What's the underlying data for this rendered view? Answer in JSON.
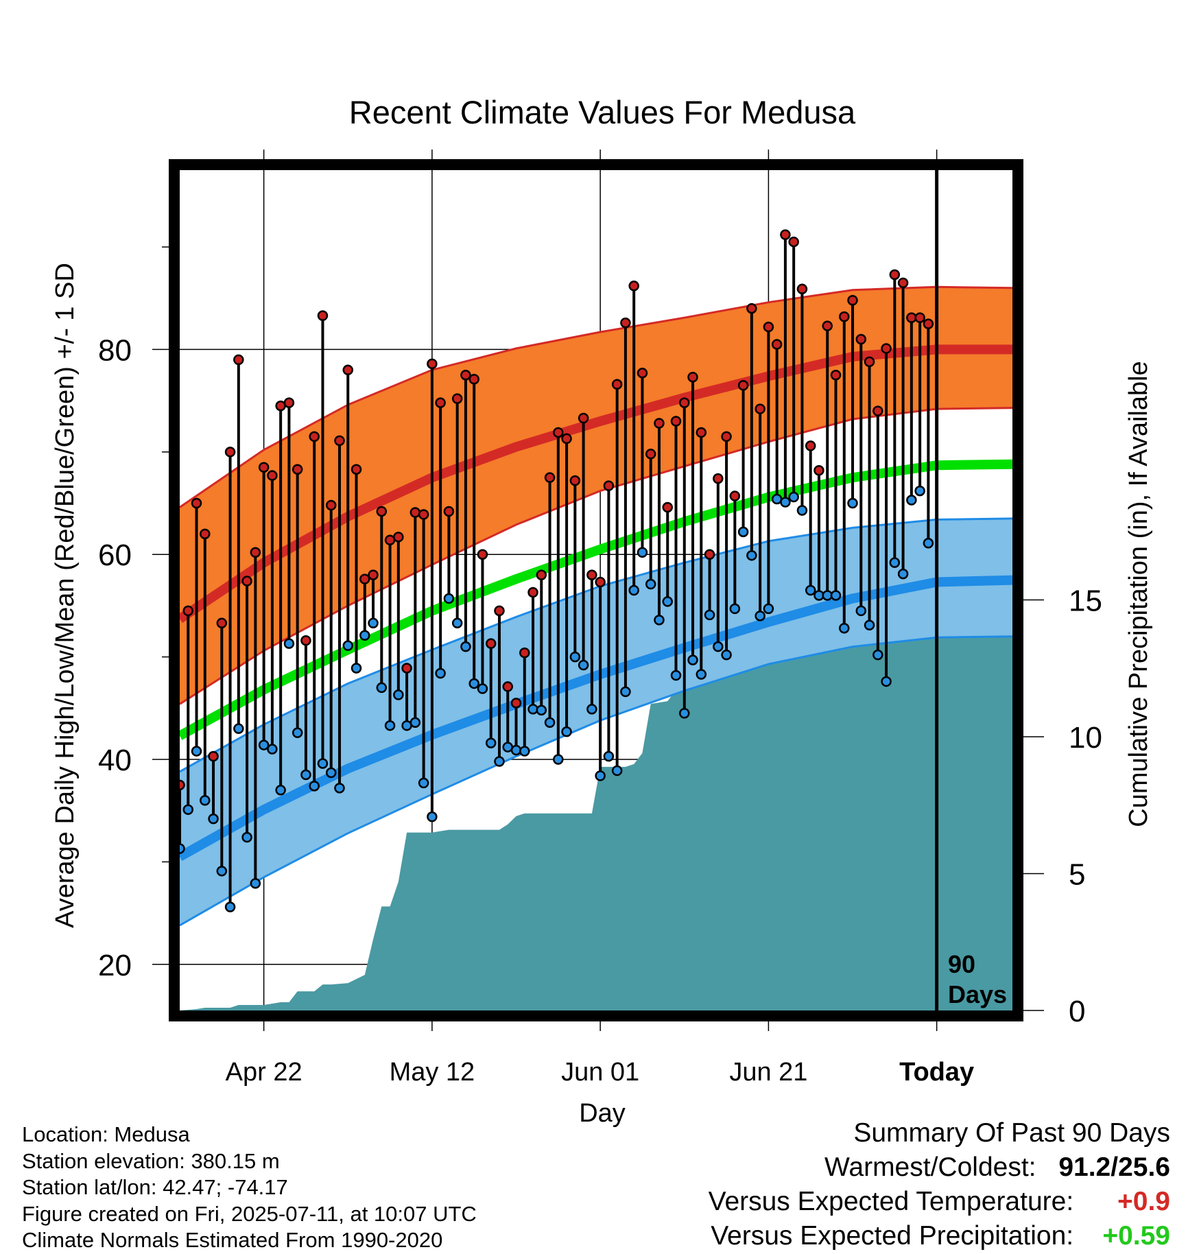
{
  "chart_data": {
    "type": "line",
    "title": "Recent Climate Values For Medusa",
    "xlabel": "Day",
    "ylabel": "Average Daily High/Low/Mean (Red/Blue/Green) +/- 1 SD",
    "y2label": "Cumulative Precipitation (in), If Available",
    "ylim": [
      15.5,
      97.5
    ],
    "y2lim": [
      0,
      30.7
    ],
    "y_ticks": [
      "20",
      "40",
      "60",
      "80"
    ],
    "y2_ticks": [
      "0",
      "5",
      "10",
      "15"
    ],
    "x_tick_labels": [
      "Apr 22",
      "May 12",
      "Jun 01",
      "Jun 21",
      "Today"
    ],
    "x_tick_days": [
      10,
      30,
      50,
      70,
      90
    ],
    "x_range": [
      0,
      99
    ],
    "today_marker": {
      "day": 90,
      "label_line1": "90",
      "label_line2": "Days"
    },
    "series": [
      {
        "name": "Daily High",
        "color": "#c8211f",
        "values": [
          37.5,
          54.5,
          65,
          62,
          40.3,
          53.3,
          70,
          79,
          57.4,
          60.2,
          68.5,
          67.7,
          74.5,
          74.8,
          68.3,
          51.6,
          71.5,
          83.3,
          64.8,
          71.1,
          78,
          68.3,
          57.6,
          58,
          64.2,
          61.4,
          61.7,
          48.9,
          64.1,
          63.9,
          78.6,
          74.8,
          64.2,
          75.2,
          77.5,
          77.1,
          60,
          51.3,
          54.5,
          47.1,
          45.5,
          50.4,
          56.3,
          58,
          67.5,
          71.9,
          71.3,
          67.2,
          73.3,
          58,
          57.3,
          66.7,
          76.6,
          82.6,
          86.2,
          77.7,
          69.8,
          72.8,
          64.6,
          73,
          74.8,
          77.3,
          71.9,
          60,
          67.4,
          71.5,
          65.7,
          76.5,
          84,
          74.2,
          82.2,
          80.5,
          91.2,
          90.5,
          85.9,
          70.6,
          68.2,
          82.3,
          77.5,
          83.2,
          84.8,
          81,
          78.8,
          74,
          80.1,
          87.3,
          86.5,
          83.1,
          83.1,
          82.5
        ]
      },
      {
        "name": "Daily Low",
        "color": "#2a8fe0",
        "values": [
          31.3,
          35.1,
          40.8,
          36,
          34.2,
          29.1,
          25.6,
          43,
          32.4,
          27.9,
          41.4,
          41,
          37,
          51.3,
          42.6,
          38.5,
          37.4,
          39.6,
          38.7,
          37.2,
          51.1,
          48.9,
          52.1,
          53.3,
          47,
          43.3,
          46.3,
          43.3,
          43.6,
          37.7,
          34.4,
          48.4,
          55.7,
          53.3,
          51,
          47.4,
          46.9,
          41.6,
          39.8,
          41.2,
          40.9,
          40.8,
          44.9,
          44.8,
          43.6,
          40,
          42.7,
          50,
          49.2,
          44.9,
          38.4,
          40.3,
          38.9,
          46.6,
          56.5,
          60.2,
          57.1,
          53.6,
          55.4,
          48.2,
          44.5,
          49.7,
          48.3,
          54.1,
          51,
          50.2,
          54.7,
          62.2,
          59.9,
          54,
          54.7,
          65.4,
          65.1,
          65.6,
          64.3,
          56.5,
          56,
          56,
          56,
          52.8,
          65,
          54.5,
          53.1,
          50.2,
          47.6,
          59.2,
          58.1,
          65.3,
          66.2,
          61.1
        ]
      },
      {
        "name": "Mean",
        "color": "#00e000"
      },
      {
        "name": "Precipitation",
        "color": "#4a9aa3"
      }
    ],
    "normal_high": {
      "color": "#d42a26",
      "band_color": "#f47c2a",
      "x": [
        0,
        10,
        20,
        30,
        40,
        50,
        60,
        70,
        80,
        90,
        99
      ],
      "mean": [
        53.7,
        59.2,
        63.7,
        67.5,
        70.5,
        73,
        75.3,
        77.4,
        79.3,
        80,
        80
      ],
      "upper": [
        64.6,
        70.2,
        74.6,
        78,
        80.1,
        81.7,
        83.1,
        84.6,
        85.8,
        86.1,
        86
      ],
      "lower": [
        45.4,
        50.6,
        55,
        59,
        62.9,
        66.2,
        68.6,
        71,
        73.2,
        74.2,
        74.3
      ]
    },
    "normal_low": {
      "color": "#1f8ce6",
      "band_color": "#7fbfe8",
      "x": [
        0,
        10,
        20,
        30,
        40,
        50,
        60,
        70,
        80,
        90,
        99
      ],
      "mean": [
        30.5,
        35.1,
        39.1,
        42.4,
        45.4,
        48.3,
        50.9,
        53.4,
        55.7,
        57.3,
        57.5
      ],
      "upper": [
        38.8,
        43.4,
        47.4,
        50.7,
        53.9,
        56.9,
        59.2,
        61.3,
        62.6,
        63.4,
        63.5
      ],
      "lower": [
        23.8,
        28.5,
        32.8,
        36.6,
        40.3,
        43.8,
        46.7,
        49.3,
        51,
        51.9,
        52
      ]
    },
    "normal_mean": {
      "x": [
        0,
        10,
        20,
        30,
        40,
        50,
        60,
        70,
        80,
        90,
        99
      ],
      "values": [
        42.3,
        46.8,
        50.7,
        54.5,
        57.6,
        60.5,
        63.2,
        65.6,
        67.5,
        68.7,
        68.8
      ]
    },
    "cumulative_precip": {
      "x": [
        0,
        2,
        3,
        6,
        7,
        10,
        12,
        13,
        14,
        16,
        17,
        18,
        20,
        22,
        23,
        24,
        25,
        26,
        27,
        28,
        29,
        30,
        32,
        35,
        38,
        39,
        40,
        41,
        44,
        45,
        47,
        48,
        49,
        50,
        52,
        53,
        54,
        55,
        56,
        58,
        60,
        61,
        62,
        63,
        65,
        66,
        67,
        70,
        71,
        72,
        73,
        75,
        77,
        78,
        81,
        82,
        83,
        84,
        85,
        86,
        87,
        89,
        99
      ],
      "values": [
        0,
        0.05,
        0.1,
        0.1,
        0.2,
        0.2,
        0.3,
        0.3,
        0.7,
        0.7,
        0.95,
        0.95,
        1,
        1.3,
        2.6,
        3.8,
        3.8,
        4.7,
        6.5,
        6.5,
        6.5,
        6.5,
        6.6,
        6.6,
        6.6,
        6.8,
        7.1,
        7.2,
        7.2,
        7.2,
        7.2,
        7.2,
        7.2,
        8.9,
        8.9,
        8.9,
        9,
        9.4,
        11.2,
        11.3,
        12.1,
        12.1,
        12.1,
        12.7,
        12.8,
        12.9,
        13.1,
        13.4,
        13.4,
        13.6,
        13.8,
        13.8,
        14,
        14.1,
        14.1,
        14.2,
        14.2,
        14.2,
        14.3,
        14.3,
        14.3,
        14.3,
        14.3
      ]
    }
  },
  "info": {
    "location": "Location: Medusa",
    "elevation": "Station elevation: 380.15 m",
    "latlon": "Station lat/lon: 42.47; -74.17",
    "created": "Figure created on Fri, 2025-07-11, at 10:07 UTC",
    "normals": "Climate Normals Estimated From 1990-2020"
  },
  "summary": {
    "heading": "Summary Of Past 90 Days",
    "warmest_coldest_label": "Warmest/Coldest:",
    "warmest_coldest_value": "91.2/25.6",
    "temp_label": "Versus Expected Temperature:",
    "temp_value": "+0.9",
    "temp_color": "#d42a26",
    "precip_label": "Versus Expected Precipitation:",
    "precip_value": "+0.59",
    "precip_color": "#22c91c"
  }
}
